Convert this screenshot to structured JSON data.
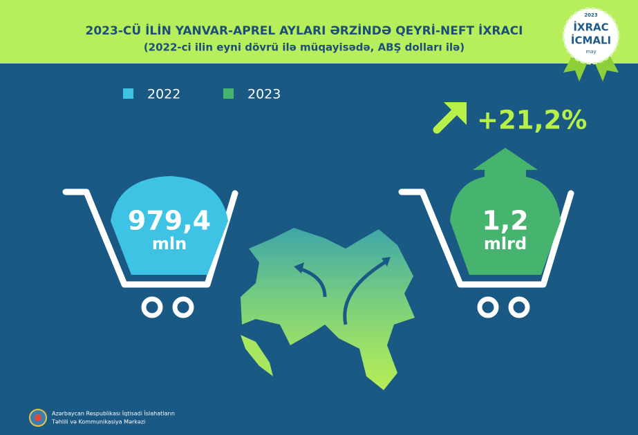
{
  "header": {
    "title": "2023-CÜ İLİN YANVAR-APREL AYLARI ƏRZİNDƏ QEYRİ-NEFT İXRACI",
    "subtitle": "(2022-ci ilin eyni dövrü ilə müqayisədə, ABŞ dolları ilə)"
  },
  "badge": {
    "year": "2023",
    "line1": "İXRAC",
    "line2": "İCMALI",
    "month": "may"
  },
  "legend": [
    {
      "label": "2022",
      "color": "#3ec3e4"
    },
    {
      "label": "2023",
      "color": "#46b46e"
    }
  ],
  "items": [
    {
      "value": "979,4",
      "unit": "mln"
    },
    {
      "value": "1,2",
      "unit": "mlrd"
    }
  ],
  "change": "+21,2%",
  "footer": [
    "Azərbaycan Respublikası İqtisadi İslahatların",
    "Təhlili və Kommunikasiya Mərkəzi"
  ]
}
